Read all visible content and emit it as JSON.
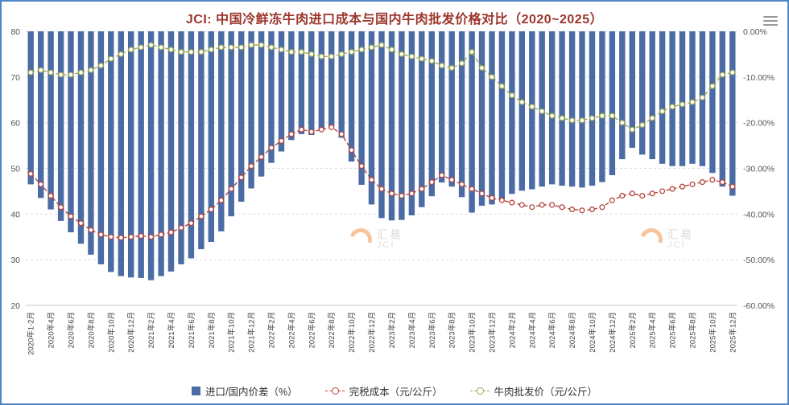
{
  "page": {
    "menu_icon": "hamburger-icon"
  },
  "watermark": {
    "cn": "汇易",
    "en": "JCI"
  },
  "chart_data": {
    "type": "bar",
    "subtype": "combo-bar-line-dual-axis",
    "title": "JCI: 中国冷鲜冻牛肉进口成本与国内牛肉批发价格对比（2020~2025）",
    "legend_position": "bottom",
    "grid": true,
    "x_label_every": 2,
    "left_axis": {
      "min": 20,
      "max": 80,
      "ticks": [
        80,
        70,
        60,
        50,
        40,
        30,
        20
      ]
    },
    "right_axis": {
      "min": -60,
      "max": 0,
      "ticks": [
        "0.00%",
        "-10.00%",
        "-20.00%",
        "-30.00%",
        "-40.00%",
        "-50.00%",
        "-60.00%"
      ]
    },
    "categories": [
      "2020年1-2月",
      "2020年3月",
      "2020年4月",
      "2020年5月",
      "2020年6月",
      "2020年7月",
      "2020年8月",
      "2020年9月",
      "2020年10月",
      "2020年11月",
      "2020年12月",
      "2021年1月",
      "2021年2月",
      "2021年3月",
      "2021年4月",
      "2021年5月",
      "2021年6月",
      "2021年7月",
      "2021年8月",
      "2021年9月",
      "2021年10月",
      "2021年11月",
      "2021年12月",
      "2022年1月",
      "2022年2月",
      "2022年3月",
      "2022年4月",
      "2022年5月",
      "2022年6月",
      "2022年7月",
      "2022年8月",
      "2022年9月",
      "2022年10月",
      "2022年11月",
      "2022年12月",
      "2023年1月",
      "2023年2月",
      "2023年3月",
      "2023年4月",
      "2023年5月",
      "2023年6月",
      "2023年7月",
      "2023年8月",
      "2023年9月",
      "2023年10月",
      "2023年11月",
      "2023年12月",
      "2024年1月",
      "2024年2月",
      "2024年3月",
      "2024年4月",
      "2024年5月",
      "2024年6月",
      "2024年7月",
      "2024年8月",
      "2024年9月",
      "2024年10月",
      "2024年11月",
      "2024年12月",
      "2025年1月",
      "2025年2月",
      "2025年3月",
      "2025年4月",
      "2025年5月",
      "2025年6月",
      "2025年7月",
      "2025年8月",
      "2025年9月",
      "2025年10月",
      "2025年11月",
      "2025年12月"
    ],
    "series": [
      {
        "name": "进口/国内价差（%）",
        "type": "bar",
        "axis": "right",
        "color": "#4b6ba5",
        "values": [
          -33.5,
          -36.5,
          -39.0,
          -41.5,
          -44.0,
          -46.5,
          -48.9,
          -51.0,
          -52.7,
          -53.6,
          -53.9,
          -54.0,
          -54.5,
          -53.6,
          -52.6,
          -51.0,
          -49.7,
          -47.7,
          -46.1,
          -43.8,
          -40.5,
          -37.3,
          -34.4,
          -31.8,
          -28.8,
          -26.3,
          -23.8,
          -22.5,
          -22.7,
          -21.5,
          -20.8,
          -23.3,
          -28.5,
          -33.6,
          -37.9,
          -40.9,
          -41.4,
          -41.3,
          -40.3,
          -38.5,
          -36.1,
          -33.1,
          -34.0,
          -36.3,
          -39.7,
          -38.2,
          -37.9,
          -36.8,
          -35.6,
          -34.9,
          -34.6,
          -34.0,
          -33.5,
          -33.8,
          -34.0,
          -34.2,
          -33.8,
          -33.0,
          -31.5,
          -28.0,
          -25.5,
          -27.0,
          -28.0,
          -29.0,
          -29.5,
          -29.5,
          -29.0,
          -29.5,
          -31.0,
          -34.0,
          -36.0
        ]
      },
      {
        "name": "完税成本（元/公斤）",
        "type": "line",
        "axis": "left",
        "color": "#b5443c",
        "values": [
          48.8,
          46.5,
          44.0,
          41.5,
          39.5,
          38.0,
          36.5,
          35.5,
          35.0,
          34.8,
          35.0,
          35.2,
          35.0,
          35.5,
          36.0,
          37.0,
          38.0,
          39.5,
          41.0,
          43.0,
          45.5,
          48.0,
          50.5,
          52.5,
          54.5,
          56.0,
          57.5,
          58.5,
          58.0,
          58.5,
          59.0,
          57.5,
          54.0,
          50.5,
          47.5,
          45.5,
          44.5,
          44.0,
          44.5,
          45.5,
          47.0,
          48.5,
          47.5,
          46.5,
          45.5,
          44.5,
          43.5,
          43.0,
          42.5,
          42.0,
          41.5,
          42.0,
          42.0,
          41.5,
          41.0,
          40.8,
          41.0,
          41.5,
          43.0,
          44.0,
          44.5,
          44.0,
          44.5,
          45.0,
          45.5,
          46.0,
          46.5,
          47.0,
          47.5,
          47.0,
          46.0
        ]
      },
      {
        "name": "牛肉批发价（元/公斤）",
        "type": "line",
        "axis": "left",
        "color": "#9faa4f",
        "values": [
          71.0,
          71.5,
          71.0,
          70.5,
          70.5,
          71.0,
          71.5,
          72.5,
          74.0,
          75.0,
          76.0,
          76.5,
          77.0,
          76.5,
          76.0,
          75.5,
          75.5,
          75.5,
          76.0,
          76.5,
          76.5,
          76.5,
          77.0,
          77.0,
          76.5,
          76.0,
          75.5,
          75.5,
          75.0,
          74.5,
          74.5,
          75.0,
          75.5,
          76.0,
          76.5,
          77.0,
          76.0,
          75.0,
          74.5,
          74.0,
          73.5,
          72.5,
          72.0,
          73.0,
          75.5,
          72.0,
          70.0,
          68.0,
          66.0,
          64.5,
          63.5,
          62.5,
          61.5,
          61.0,
          60.5,
          60.5,
          61.0,
          61.5,
          61.5,
          60.0,
          58.5,
          59.5,
          61.0,
          62.5,
          63.5,
          64.0,
          64.5,
          65.5,
          68.0,
          70.5,
          71.0
        ]
      }
    ]
  }
}
